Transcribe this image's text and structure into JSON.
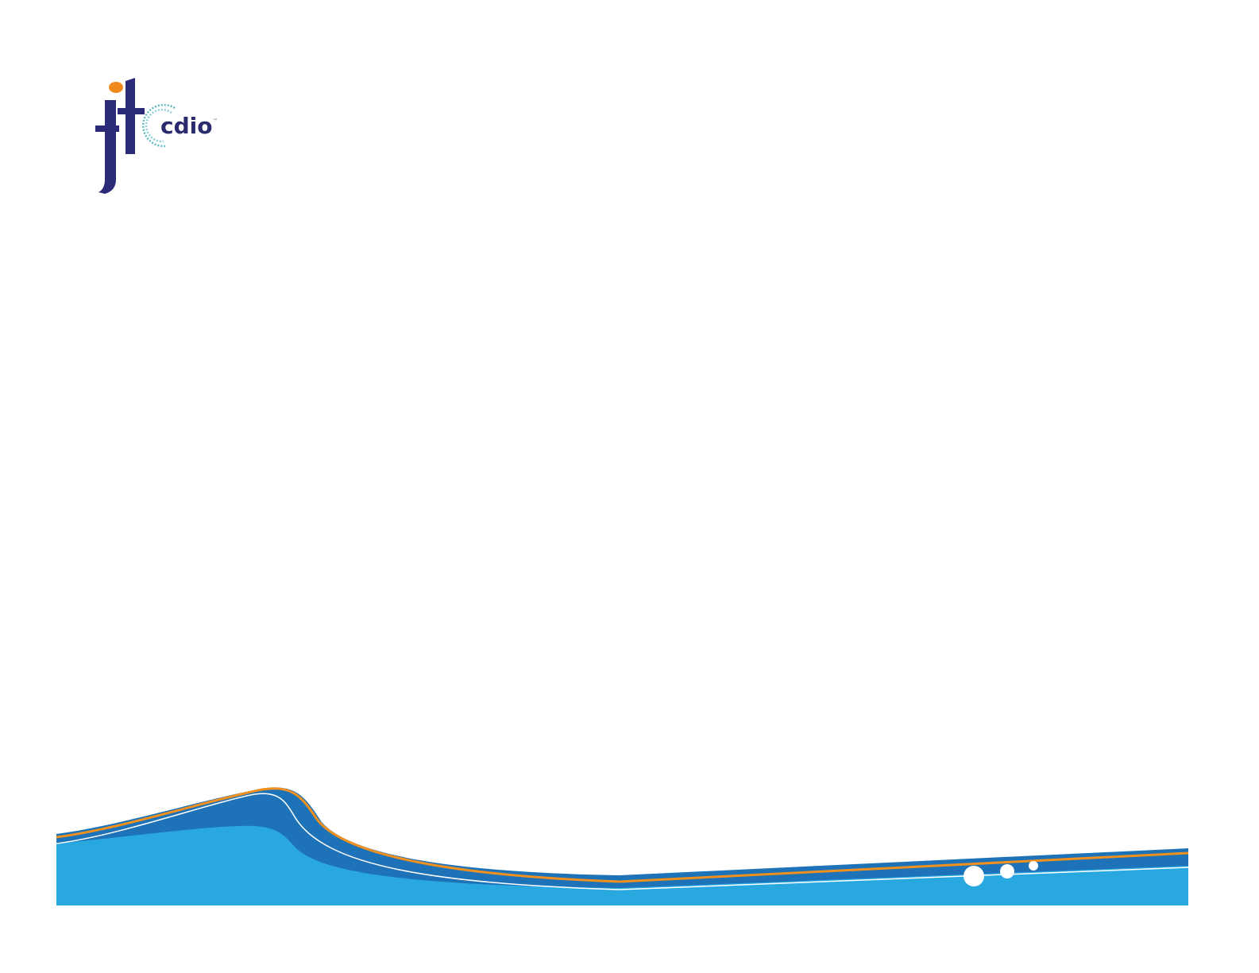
{
  "logo": {
    "text": "jit cdio",
    "colors": {
      "letters": "#2b2a78",
      "dot": "#f08a1c",
      "ring": "#5fb8c0"
    }
  },
  "decoration": {
    "colors": {
      "light_blue": "#29a8e0",
      "dark_blue": "#1e72b8",
      "orange": "#f0901e",
      "white": "#ffffff"
    }
  }
}
